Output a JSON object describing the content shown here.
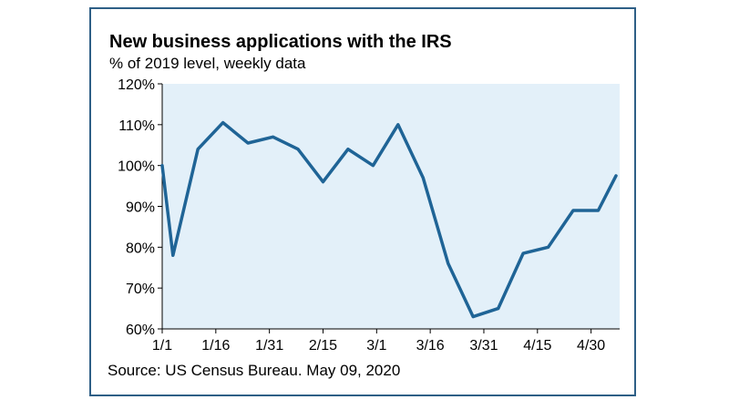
{
  "title": "New business applications with the IRS",
  "subtitle": "% of 2019 level, weekly data",
  "source": "Source: US Census Bureau. May 09, 2020",
  "chart_data": {
    "type": "line",
    "title": "New business applications with the IRS",
    "subtitle": "% of 2019 level, weekly data",
    "xlabel": "",
    "ylabel": "",
    "x_ticks": [
      "1/1",
      "1/16",
      "1/31",
      "2/15",
      "3/1",
      "3/16",
      "3/31",
      "4/15",
      "4/30"
    ],
    "y_ticks": [
      "60%",
      "70%",
      "80%",
      "90%",
      "100%",
      "110%",
      "120%"
    ],
    "ylim": [
      60,
      120
    ],
    "xlim": [
      0,
      128
    ],
    "plot_background": "#e3f0f9",
    "line_color": "#1f6496",
    "grid": false,
    "legend": "none",
    "series": [
      {
        "x": [
          0,
          3,
          10,
          17,
          24,
          31,
          38,
          45,
          52,
          59,
          66,
          73,
          80,
          87,
          94,
          101,
          108,
          115,
          122,
          129
        ],
        "values": [
          100,
          78,
          104,
          110.5,
          105.5,
          107,
          104,
          96,
          104,
          100,
          110,
          97,
          76,
          63,
          65,
          78.5,
          80,
          89,
          89,
          97.5
        ]
      }
    ]
  }
}
